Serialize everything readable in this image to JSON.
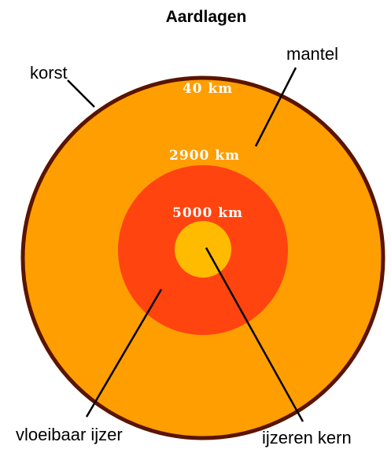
{
  "title": "Aardlagen",
  "layers": [
    {
      "label": "korst",
      "depth": "40 km"
    },
    {
      "label": "mantel",
      "depth": "2900 km"
    },
    {
      "label": "vloeibaar ijzer",
      "depth": "5000 km"
    },
    {
      "label": "ijzeren kern"
    }
  ]
}
